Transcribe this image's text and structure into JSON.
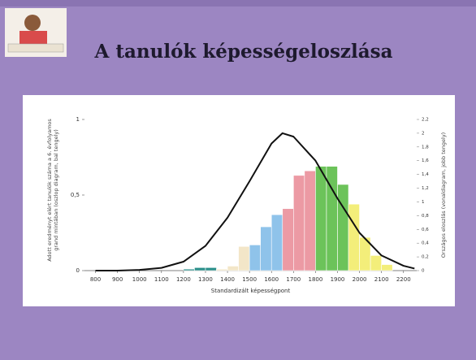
{
  "slide": {
    "title": "A tanulók képességeloszlása"
  },
  "chart_data": {
    "type": "histogram",
    "x_label": "Standardizált képességpont",
    "y_label": "Adott eredményt elért tanulók száma a 6. évfolyamos grand mintában (oszlop diagram, bal tengely)",
    "y2_label": "Országos eloszlás (vonaldiagram, jobb tengely)",
    "bins": [
      1200,
      1250,
      1300,
      1350,
      1400,
      1450,
      1500,
      1550,
      1600,
      1650,
      1700,
      1750,
      1800,
      1850,
      1900,
      1950,
      2000,
      2050,
      2100,
      2150
    ],
    "values": [
      0.01,
      0.02,
      0.02,
      0.01,
      0.03,
      0.16,
      0.17,
      0.29,
      0.37,
      0.41,
      0.63,
      0.66,
      0.69,
      0.69,
      0.57,
      0.44,
      0.22,
      0.1,
      0.04
    ],
    "colors": [
      "#2a8f8a",
      "#2a8f8a",
      "#2a8f8a",
      "#f3e6c8",
      "#f3e6c8",
      "#f3e6c8",
      "#8fc3ea",
      "#8fc3ea",
      "#8fc3ea",
      "#ec9aa4",
      "#ec9aa4",
      "#ec9aa4",
      "#6cc35a",
      "#6cc35a",
      "#6cc35a",
      "#f3ee7a",
      "#f3ee7a",
      "#f3ee7a",
      "#f3ee7a"
    ],
    "xlim": [
      750,
      2260
    ],
    "xticks": [
      800,
      900,
      1000,
      1100,
      1200,
      1300,
      1400,
      1500,
      1600,
      1700,
      1800,
      1900,
      2000,
      2100,
      2200
    ],
    "ylim": [
      0,
      1
    ],
    "yticks": [
      0,
      {
        "value": 0.5,
        "label": "0,5"
      },
      1
    ],
    "y2lim": [
      0,
      2.2
    ],
    "y2ticks": [
      0,
      {
        "value": 0.2,
        "label": "0,2"
      },
      {
        "value": 0.4,
        "label": "0,4"
      },
      {
        "value": 0.6,
        "label": "0,6"
      },
      {
        "value": 0.8,
        "label": "0,8"
      },
      1,
      {
        "value": 1.2,
        "label": "1,2"
      },
      {
        "value": 1.4,
        "label": "1,4"
      },
      {
        "value": 1.6,
        "label": "1,6"
      },
      {
        "value": 1.8,
        "label": "1,8"
      },
      2,
      {
        "value": 2.2,
        "label": "2,2"
      }
    ],
    "curve": {
      "type": "line",
      "axis": "y2",
      "color": "#111111",
      "x": [
        800,
        900,
        1000,
        1100,
        1200,
        1300,
        1400,
        1500,
        1600,
        1650,
        1700,
        1800,
        1900,
        2000,
        2100,
        2200,
        2250
      ],
      "values": [
        0,
        0,
        0.01,
        0.04,
        0.13,
        0.36,
        0.77,
        1.3,
        1.85,
        2.0,
        1.95,
        1.6,
        1.05,
        0.55,
        0.22,
        0.07,
        0.03
      ]
    }
  }
}
